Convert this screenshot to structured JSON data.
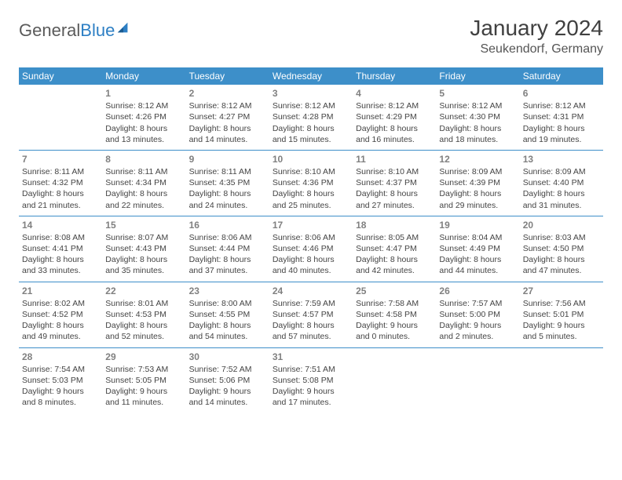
{
  "brand": {
    "general": "General",
    "blue": "Blue"
  },
  "header": {
    "title": "January 2024",
    "subtitle": "Seukendorf, Germany"
  },
  "weekdays": [
    "Sunday",
    "Monday",
    "Tuesday",
    "Wednesday",
    "Thursday",
    "Friday",
    "Saturday"
  ],
  "colors": {
    "header_bg": "#3d8fc9",
    "divider": "#3d8fc9"
  },
  "weeks": [
    [
      {
        "day": "",
        "sunrise": "",
        "sunset": "",
        "daylight1": "",
        "daylight2": ""
      },
      {
        "day": "1",
        "sunrise": "Sunrise: 8:12 AM",
        "sunset": "Sunset: 4:26 PM",
        "daylight1": "Daylight: 8 hours",
        "daylight2": "and 13 minutes."
      },
      {
        "day": "2",
        "sunrise": "Sunrise: 8:12 AM",
        "sunset": "Sunset: 4:27 PM",
        "daylight1": "Daylight: 8 hours",
        "daylight2": "and 14 minutes."
      },
      {
        "day": "3",
        "sunrise": "Sunrise: 8:12 AM",
        "sunset": "Sunset: 4:28 PM",
        "daylight1": "Daylight: 8 hours",
        "daylight2": "and 15 minutes."
      },
      {
        "day": "4",
        "sunrise": "Sunrise: 8:12 AM",
        "sunset": "Sunset: 4:29 PM",
        "daylight1": "Daylight: 8 hours",
        "daylight2": "and 16 minutes."
      },
      {
        "day": "5",
        "sunrise": "Sunrise: 8:12 AM",
        "sunset": "Sunset: 4:30 PM",
        "daylight1": "Daylight: 8 hours",
        "daylight2": "and 18 minutes."
      },
      {
        "day": "6",
        "sunrise": "Sunrise: 8:12 AM",
        "sunset": "Sunset: 4:31 PM",
        "daylight1": "Daylight: 8 hours",
        "daylight2": "and 19 minutes."
      }
    ],
    [
      {
        "day": "7",
        "sunrise": "Sunrise: 8:11 AM",
        "sunset": "Sunset: 4:32 PM",
        "daylight1": "Daylight: 8 hours",
        "daylight2": "and 21 minutes."
      },
      {
        "day": "8",
        "sunrise": "Sunrise: 8:11 AM",
        "sunset": "Sunset: 4:34 PM",
        "daylight1": "Daylight: 8 hours",
        "daylight2": "and 22 minutes."
      },
      {
        "day": "9",
        "sunrise": "Sunrise: 8:11 AM",
        "sunset": "Sunset: 4:35 PM",
        "daylight1": "Daylight: 8 hours",
        "daylight2": "and 24 minutes."
      },
      {
        "day": "10",
        "sunrise": "Sunrise: 8:10 AM",
        "sunset": "Sunset: 4:36 PM",
        "daylight1": "Daylight: 8 hours",
        "daylight2": "and 25 minutes."
      },
      {
        "day": "11",
        "sunrise": "Sunrise: 8:10 AM",
        "sunset": "Sunset: 4:37 PM",
        "daylight1": "Daylight: 8 hours",
        "daylight2": "and 27 minutes."
      },
      {
        "day": "12",
        "sunrise": "Sunrise: 8:09 AM",
        "sunset": "Sunset: 4:39 PM",
        "daylight1": "Daylight: 8 hours",
        "daylight2": "and 29 minutes."
      },
      {
        "day": "13",
        "sunrise": "Sunrise: 8:09 AM",
        "sunset": "Sunset: 4:40 PM",
        "daylight1": "Daylight: 8 hours",
        "daylight2": "and 31 minutes."
      }
    ],
    [
      {
        "day": "14",
        "sunrise": "Sunrise: 8:08 AM",
        "sunset": "Sunset: 4:41 PM",
        "daylight1": "Daylight: 8 hours",
        "daylight2": "and 33 minutes."
      },
      {
        "day": "15",
        "sunrise": "Sunrise: 8:07 AM",
        "sunset": "Sunset: 4:43 PM",
        "daylight1": "Daylight: 8 hours",
        "daylight2": "and 35 minutes."
      },
      {
        "day": "16",
        "sunrise": "Sunrise: 8:06 AM",
        "sunset": "Sunset: 4:44 PM",
        "daylight1": "Daylight: 8 hours",
        "daylight2": "and 37 minutes."
      },
      {
        "day": "17",
        "sunrise": "Sunrise: 8:06 AM",
        "sunset": "Sunset: 4:46 PM",
        "daylight1": "Daylight: 8 hours",
        "daylight2": "and 40 minutes."
      },
      {
        "day": "18",
        "sunrise": "Sunrise: 8:05 AM",
        "sunset": "Sunset: 4:47 PM",
        "daylight1": "Daylight: 8 hours",
        "daylight2": "and 42 minutes."
      },
      {
        "day": "19",
        "sunrise": "Sunrise: 8:04 AM",
        "sunset": "Sunset: 4:49 PM",
        "daylight1": "Daylight: 8 hours",
        "daylight2": "and 44 minutes."
      },
      {
        "day": "20",
        "sunrise": "Sunrise: 8:03 AM",
        "sunset": "Sunset: 4:50 PM",
        "daylight1": "Daylight: 8 hours",
        "daylight2": "and 47 minutes."
      }
    ],
    [
      {
        "day": "21",
        "sunrise": "Sunrise: 8:02 AM",
        "sunset": "Sunset: 4:52 PM",
        "daylight1": "Daylight: 8 hours",
        "daylight2": "and 49 minutes."
      },
      {
        "day": "22",
        "sunrise": "Sunrise: 8:01 AM",
        "sunset": "Sunset: 4:53 PM",
        "daylight1": "Daylight: 8 hours",
        "daylight2": "and 52 minutes."
      },
      {
        "day": "23",
        "sunrise": "Sunrise: 8:00 AM",
        "sunset": "Sunset: 4:55 PM",
        "daylight1": "Daylight: 8 hours",
        "daylight2": "and 54 minutes."
      },
      {
        "day": "24",
        "sunrise": "Sunrise: 7:59 AM",
        "sunset": "Sunset: 4:57 PM",
        "daylight1": "Daylight: 8 hours",
        "daylight2": "and 57 minutes."
      },
      {
        "day": "25",
        "sunrise": "Sunrise: 7:58 AM",
        "sunset": "Sunset: 4:58 PM",
        "daylight1": "Daylight: 9 hours",
        "daylight2": "and 0 minutes."
      },
      {
        "day": "26",
        "sunrise": "Sunrise: 7:57 AM",
        "sunset": "Sunset: 5:00 PM",
        "daylight1": "Daylight: 9 hours",
        "daylight2": "and 2 minutes."
      },
      {
        "day": "27",
        "sunrise": "Sunrise: 7:56 AM",
        "sunset": "Sunset: 5:01 PM",
        "daylight1": "Daylight: 9 hours",
        "daylight2": "and 5 minutes."
      }
    ],
    [
      {
        "day": "28",
        "sunrise": "Sunrise: 7:54 AM",
        "sunset": "Sunset: 5:03 PM",
        "daylight1": "Daylight: 9 hours",
        "daylight2": "and 8 minutes."
      },
      {
        "day": "29",
        "sunrise": "Sunrise: 7:53 AM",
        "sunset": "Sunset: 5:05 PM",
        "daylight1": "Daylight: 9 hours",
        "daylight2": "and 11 minutes."
      },
      {
        "day": "30",
        "sunrise": "Sunrise: 7:52 AM",
        "sunset": "Sunset: 5:06 PM",
        "daylight1": "Daylight: 9 hours",
        "daylight2": "and 14 minutes."
      },
      {
        "day": "31",
        "sunrise": "Sunrise: 7:51 AM",
        "sunset": "Sunset: 5:08 PM",
        "daylight1": "Daylight: 9 hours",
        "daylight2": "and 17 minutes."
      },
      {
        "day": "",
        "sunrise": "",
        "sunset": "",
        "daylight1": "",
        "daylight2": ""
      },
      {
        "day": "",
        "sunrise": "",
        "sunset": "",
        "daylight1": "",
        "daylight2": ""
      },
      {
        "day": "",
        "sunrise": "",
        "sunset": "",
        "daylight1": "",
        "daylight2": ""
      }
    ]
  ]
}
